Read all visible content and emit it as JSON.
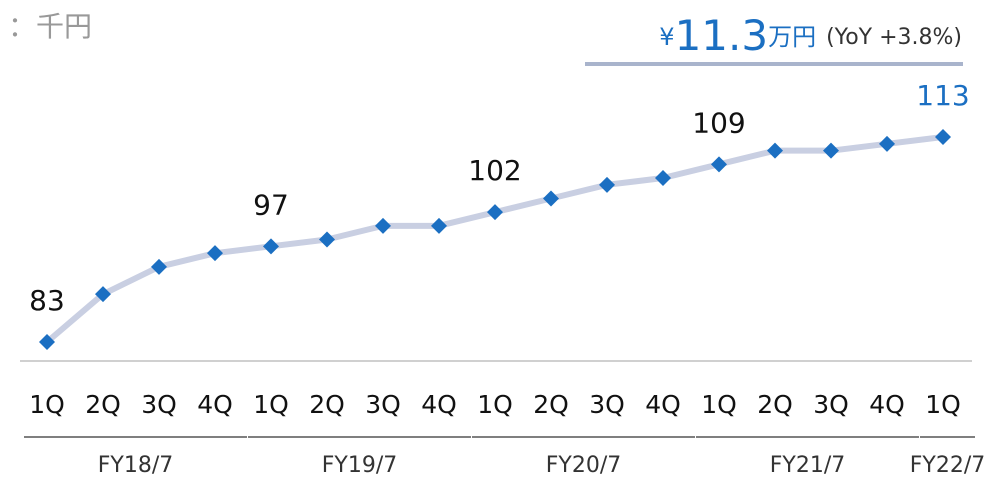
{
  "chart_data": {
    "type": "line",
    "unit": "：千円",
    "headline": {
      "prefix": "¥",
      "amount": "11.3",
      "suffix": "万円",
      "note": "(YoY +3.8%)"
    },
    "groups": [
      {
        "label": "FY18/7",
        "quarters": [
          "1Q",
          "2Q",
          "3Q",
          "4Q"
        ]
      },
      {
        "label": "FY19/7",
        "quarters": [
          "1Q",
          "2Q",
          "3Q",
          "4Q"
        ]
      },
      {
        "label": "FY20/7",
        "quarters": [
          "1Q",
          "2Q",
          "3Q",
          "4Q"
        ]
      },
      {
        "label": "FY21/7",
        "quarters": [
          "1Q",
          "2Q",
          "3Q",
          "4Q"
        ]
      },
      {
        "label": "FY22/7",
        "quarters": [
          "1Q"
        ]
      }
    ],
    "values": [
      83,
      90,
      94,
      96,
      97,
      98,
      100,
      100,
      102,
      104,
      106,
      107,
      109,
      111,
      111,
      112,
      113
    ],
    "value_labels": [
      "83",
      null,
      null,
      null,
      "97",
      null,
      null,
      null,
      "102",
      null,
      null,
      null,
      "109",
      null,
      null,
      null,
      "113"
    ],
    "line_color": "#c9cfe2",
    "marker_color": "#1b6fc2",
    "highlight_color": "#1b6fc2"
  }
}
